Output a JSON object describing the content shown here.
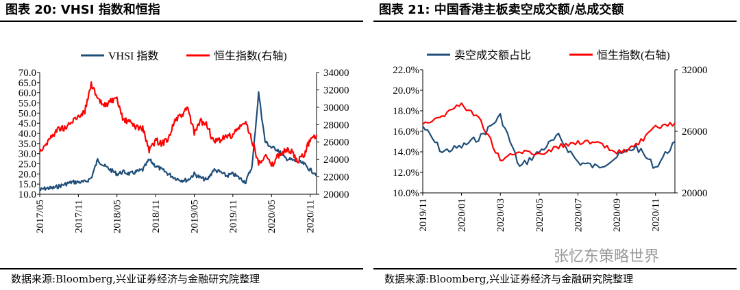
{
  "left": {
    "title": "图表 20:  VHSI 指数和恒指",
    "source": "数据来源:Bloomberg,兴业证券经济与金融研究院整理"
  },
  "right": {
    "title": "图表 21:  中国香港主板卖空成交额/总成交额",
    "source": "数据来源:Bloomberg,兴业证券经济与金融研究院整理"
  },
  "watermark": "张忆东策略世界",
  "colors": {
    "blue": "#1f4e79",
    "red": "#ff0000"
  },
  "chart_data": [
    {
      "type": "line",
      "title": "",
      "legend_position": "top",
      "grid": false,
      "x_ticks": [
        "2017/05",
        "2017/11",
        "2018/05",
        "2018/11",
        "2019/05",
        "2019/11",
        "2020/05",
        "2020/11"
      ],
      "xlim": [
        "2017/05",
        "2020/12"
      ],
      "y_left_ticks": [
        "10.0",
        "15.0",
        "20.0",
        "25.0",
        "30.0",
        "35.0",
        "40.0",
        "45.0",
        "50.0",
        "55.0",
        "60.0",
        "65.0",
        "70.0"
      ],
      "ylim_left": [
        10,
        70
      ],
      "y_right_ticks": [
        "20000",
        "22000",
        "24000",
        "26000",
        "28000",
        "30000",
        "32000",
        "34000"
      ],
      "ylim_right": [
        20000,
        34000
      ],
      "series": [
        {
          "name": "VHSI 指数",
          "axis": "left",
          "color": "#1f4e79",
          "x": [
            "2017/05",
            "2017/06",
            "2017/07",
            "2017/08",
            "2017/09",
            "2017/10",
            "2017/11",
            "2017/12",
            "2018/01",
            "2018/02",
            "2018/03",
            "2018/04",
            "2018/05",
            "2018/06",
            "2018/07",
            "2018/08",
            "2018/09",
            "2018/10",
            "2018/11",
            "2018/12",
            "2019/01",
            "2019/02",
            "2019/03",
            "2019/04",
            "2019/05",
            "2019/06",
            "2019/07",
            "2019/08",
            "2019/09",
            "2019/10",
            "2019/11",
            "2019/12",
            "2020/01",
            "2020/02",
            "2020/03",
            "2020/04",
            "2020/05",
            "2020/06",
            "2020/07",
            "2020/08",
            "2020/09",
            "2020/10",
            "2020/11",
            "2020/12"
          ],
          "y": [
            12,
            13,
            13,
            14,
            15,
            16,
            16,
            16,
            18,
            27,
            24,
            22,
            20,
            21,
            20,
            21,
            22,
            27,
            24,
            22,
            20,
            18,
            17,
            17,
            20,
            18,
            17,
            22,
            21,
            19,
            20,
            18,
            16,
            24,
            60,
            36,
            33,
            32,
            28,
            27,
            26,
            25,
            22,
            20
          ]
        },
        {
          "name": "恒生指数(右轴)",
          "axis": "right",
          "color": "#ff0000",
          "x": [
            "2017/05",
            "2017/06",
            "2017/07",
            "2017/08",
            "2017/09",
            "2017/10",
            "2017/11",
            "2017/12",
            "2018/01",
            "2018/02",
            "2018/03",
            "2018/04",
            "2018/05",
            "2018/06",
            "2018/07",
            "2018/08",
            "2018/09",
            "2018/10",
            "2018/11",
            "2018/12",
            "2019/01",
            "2019/02",
            "2019/03",
            "2019/04",
            "2019/05",
            "2019/06",
            "2019/07",
            "2019/08",
            "2019/09",
            "2019/10",
            "2019/11",
            "2019/12",
            "2020/01",
            "2020/02",
            "2020/03",
            "2020/04",
            "2020/05",
            "2020/06",
            "2020/07",
            "2020/08",
            "2020/09",
            "2020/10",
            "2020/11",
            "2020/12"
          ],
          "y": [
            25000,
            25800,
            26800,
            27600,
            27600,
            28300,
            29000,
            29500,
            32800,
            30800,
            30200,
            30700,
            30800,
            28500,
            28300,
            27700,
            27600,
            25000,
            26200,
            25800,
            26500,
            28500,
            29000,
            29900,
            27000,
            28400,
            28000,
            25900,
            26300,
            26600,
            26800,
            27700,
            28200,
            26200,
            23500,
            24600,
            23200,
            24400,
            25000,
            25000,
            23700,
            24500,
            26300,
            26800
          ]
        }
      ]
    },
    {
      "type": "line",
      "title": "",
      "legend_position": "top",
      "grid": false,
      "x_ticks": [
        "2019/11",
        "2020/01",
        "2020/03",
        "2020/05",
        "2020/07",
        "2020/09",
        "2020/11"
      ],
      "xlim": [
        "2019/11",
        "2020/12"
      ],
      "y_left_ticks": [
        "10.0%",
        "12.0%",
        "14.0%",
        "16.0%",
        "18.0%",
        "20.0%",
        "22.0%"
      ],
      "ylim_left": [
        10,
        22
      ],
      "y_right_ticks": [
        "20000",
        "26000",
        "32000"
      ],
      "ylim_right": [
        20000,
        32000
      ],
      "series": [
        {
          "name": "卖空成交额占比",
          "axis": "left",
          "color": "#1f4e79",
          "x": [
            "2019/11",
            "2019/12",
            "2020/01",
            "2020/02",
            "2020/03",
            "2020/04",
            "2020/05",
            "2020/06",
            "2020/07",
            "2020/08",
            "2020/09",
            "2020/10",
            "2020/11",
            "2020/12"
          ],
          "y": [
            16.5,
            14.0,
            14.5,
            15.5,
            17.5,
            12.5,
            14.0,
            15.5,
            13.0,
            12.5,
            13.5,
            14.5,
            12.5,
            15.0
          ]
        },
        {
          "name": "恒生指数(右轴)",
          "axis": "right",
          "color": "#ff0000",
          "x": [
            "2019/11",
            "2019/12",
            "2020/01",
            "2020/02",
            "2020/03",
            "2020/04",
            "2020/05",
            "2020/06",
            "2020/07",
            "2020/08",
            "2020/09",
            "2020/10",
            "2020/11",
            "2020/12"
          ],
          "y": [
            26800,
            27500,
            28700,
            27000,
            23200,
            24000,
            23800,
            24500,
            25000,
            24800,
            23900,
            24600,
            26300,
            26800
          ]
        }
      ]
    }
  ]
}
